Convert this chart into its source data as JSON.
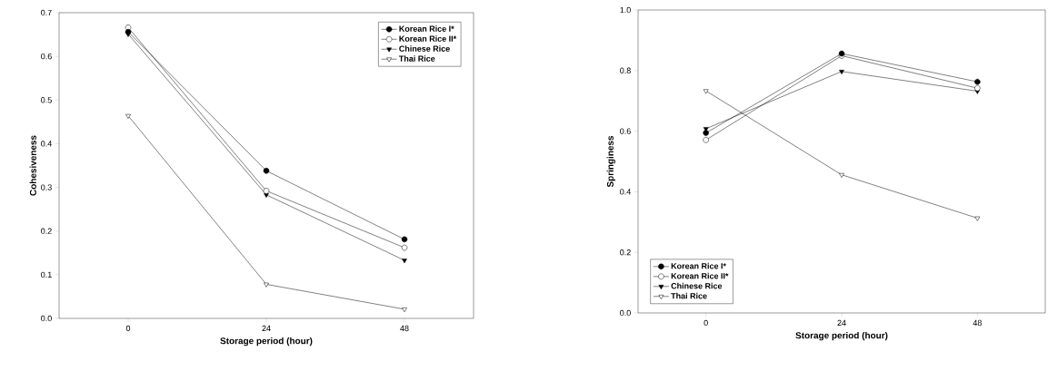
{
  "chart_data": [
    {
      "type": "line",
      "xlabel": "Storage period (hour)",
      "ylabel": "Cohesiveness",
      "x": [
        0,
        24,
        48
      ],
      "xlim": [
        -12,
        60
      ],
      "xticks": [
        0,
        24,
        48
      ],
      "ylim": [
        0,
        0.7
      ],
      "yticks": [
        {
          "value": 0,
          "label": "0.0"
        },
        {
          "value": 0.1,
          "label": "0.1"
        },
        {
          "value": 0.2,
          "label": "0.2"
        },
        {
          "value": 0.3,
          "label": "0.3"
        },
        {
          "value": 0.4,
          "label": "0.4"
        },
        {
          "value": 0.5,
          "label": "0.5"
        },
        {
          "value": 0.6,
          "label": "0.6"
        },
        {
          "value": 0.7,
          "label": "0.7"
        }
      ],
      "legend": "top right",
      "grid": false,
      "series": [
        {
          "name": "Korean Rice I*",
          "color": "#000000",
          "marker": "circle",
          "values": [
            0.656,
            0.338,
            0.181
          ]
        },
        {
          "name": "Korean Rice II*",
          "color": "#ffffff",
          "marker": "circle",
          "values": [
            0.666,
            0.292,
            0.162
          ]
        },
        {
          "name": "Chinese Rice",
          "color": "#000000",
          "marker": "triangle",
          "values": [
            0.651,
            0.283,
            0.133
          ]
        },
        {
          "name": "Thai Rice",
          "color": "#ffffff",
          "marker": "triangle",
          "values": [
            0.464,
            0.078,
            0.021
          ]
        }
      ]
    },
    {
      "type": "line",
      "xlabel": "Storage period (hour)",
      "ylabel": "Springiness",
      "x": [
        0,
        24,
        48
      ],
      "xlim": [
        -12,
        60
      ],
      "xticks": [
        0,
        24,
        48
      ],
      "ylim": [
        0,
        1.0
      ],
      "yticks": [
        {
          "value": 0,
          "label": "0.0"
        },
        {
          "value": 0.2,
          "label": "0.2"
        },
        {
          "value": 0.4,
          "label": "0.4"
        },
        {
          "value": 0.6,
          "label": "0.6"
        },
        {
          "value": 0.8,
          "label": "0.8"
        },
        {
          "value": 1.0,
          "label": "1.0"
        }
      ],
      "legend": "bottom left",
      "grid": false,
      "series": [
        {
          "name": "Korean Rice I*",
          "color": "#000000",
          "marker": "circle",
          "values": [
            0.594,
            0.856,
            0.763
          ]
        },
        {
          "name": "Korean Rice II*",
          "color": "#ffffff",
          "marker": "circle",
          "values": [
            0.571,
            0.849,
            0.742
          ]
        },
        {
          "name": "Chinese Rice",
          "color": "#000000",
          "marker": "triangle",
          "values": [
            0.608,
            0.797,
            0.732
          ]
        },
        {
          "name": "Thai Rice",
          "color": "#ffffff",
          "marker": "triangle",
          "values": [
            0.733,
            0.456,
            0.313
          ]
        }
      ]
    }
  ]
}
